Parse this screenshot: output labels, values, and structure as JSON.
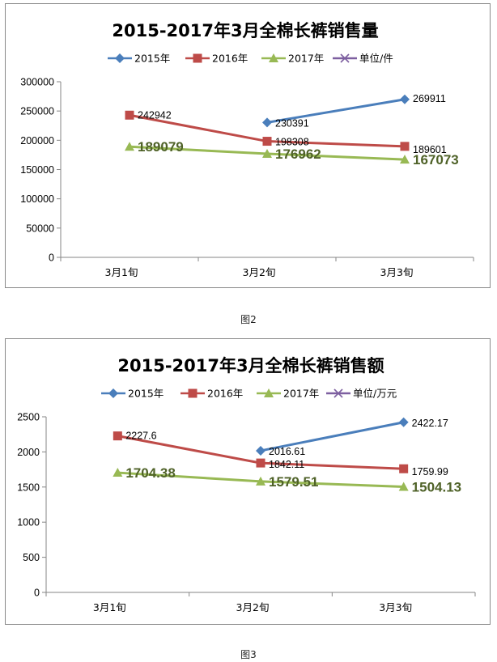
{
  "colors": {
    "s2015": "#4a7ebb",
    "s2016": "#be4b48",
    "s2017": "#98b954",
    "unit": "#7d5fa0",
    "label2017": "#4f6228"
  },
  "chart_data": [
    {
      "type": "line",
      "title": "2015-2017年3月全棉长裤销售量",
      "categories": [
        "3月1旬",
        "3月2旬",
        "3月3旬"
      ],
      "ylim": [
        0,
        300000
      ],
      "yticks": [
        "0",
        "50000",
        "100000",
        "150000",
        "200000",
        "250000",
        "300000"
      ],
      "ytick_values": [
        0,
        50000,
        100000,
        150000,
        200000,
        250000,
        300000
      ],
      "grid": false,
      "legend_position": "top",
      "legend": [
        "2015年",
        "2016年",
        "2017年",
        "单位/件"
      ],
      "series": [
        {
          "name": "2015年",
          "values": [
            null,
            230391,
            269911
          ],
          "labels": [
            "",
            "230391",
            "269911"
          ]
        },
        {
          "name": "2016年",
          "values": [
            242942,
            198308,
            189601
          ],
          "labels": [
            "242942",
            "198308",
            "189601"
          ]
        },
        {
          "name": "2017年",
          "values": [
            189079,
            176962,
            167073
          ],
          "labels": [
            "189079",
            "176962",
            "167073"
          ]
        }
      ],
      "caption": "图2"
    },
    {
      "type": "line",
      "title": "2015-2017年3月全棉长裤销售额",
      "categories": [
        "3月1旬",
        "3月2旬",
        "3月3旬"
      ],
      "ylim": [
        0,
        2500
      ],
      "yticks": [
        "0",
        "500",
        "1000",
        "1500",
        "2000",
        "2500"
      ],
      "ytick_values": [
        0,
        500,
        1000,
        1500,
        2000,
        2500
      ],
      "grid": false,
      "legend_position": "top",
      "legend": [
        "2015年",
        "2016年",
        "2017年",
        "单位/万元"
      ],
      "series": [
        {
          "name": "2015年",
          "values": [
            null,
            2016.61,
            2422.17
          ],
          "labels": [
            "",
            "2016.61",
            "2422.17"
          ]
        },
        {
          "name": "2016年",
          "values": [
            2227.6,
            1842.11,
            1759.99
          ],
          "labels": [
            "2227.6",
            "1842.11",
            "1759.99"
          ]
        },
        {
          "name": "2017年",
          "values": [
            1704.38,
            1579.51,
            1504.13
          ],
          "labels": [
            "1704.38",
            "1579.51",
            "1504.13"
          ]
        }
      ],
      "caption": "图3"
    }
  ]
}
